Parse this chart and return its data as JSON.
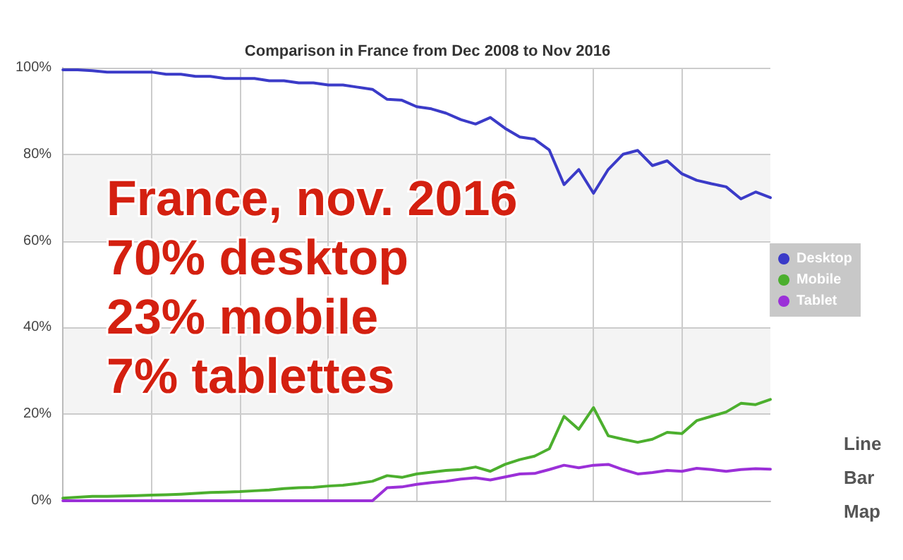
{
  "chart_data": {
    "type": "line",
    "title": "Comparison in France from Dec 2008 to Nov 2016",
    "categories": [
      null,
      null,
      null,
      null,
      null,
      null,
      null,
      null,
      null,
      null,
      null,
      null,
      null,
      null,
      null,
      null,
      null,
      null,
      null,
      null,
      null,
      null,
      null,
      null,
      null,
      null,
      null,
      null,
      null,
      null,
      null,
      null,
      null,
      null,
      null,
      null,
      null,
      null,
      null,
      null,
      null,
      null,
      null,
      null,
      null,
      null,
      null,
      null,
      null
    ],
    "series": [
      {
        "name": "Desktop",
        "color": "#3b3bc8",
        "values": [
          99.5,
          99.5,
          99.3,
          99,
          99,
          99,
          99,
          98.5,
          98.5,
          98,
          98,
          97.5,
          97.5,
          97.5,
          97,
          97,
          96.5,
          96.5,
          96,
          96,
          95.5,
          95,
          92.7,
          92.5,
          91,
          90.5,
          89.5,
          88,
          87,
          88.5,
          86,
          84,
          83.5,
          81,
          73,
          76.5,
          71,
          76.5,
          80,
          80.9,
          77.4,
          78.5,
          75.5,
          74,
          73.2,
          72.5,
          69.7,
          71.3,
          70
        ]
      },
      {
        "name": "Mobile",
        "color": "#4caf2e",
        "values": [
          0.6,
          0.8,
          1,
          1,
          1.1,
          1.2,
          1.3,
          1.4,
          1.5,
          1.7,
          1.9,
          2,
          2.1,
          2.3,
          2.5,
          2.8,
          3,
          3.1,
          3.4,
          3.6,
          4,
          4.5,
          5.8,
          5.4,
          6.2,
          6.6,
          7,
          7.2,
          7.8,
          6.8,
          8.4,
          9.5,
          10.3,
          12,
          19.5,
          16.5,
          21.5,
          15,
          14.2,
          13.5,
          14.2,
          15.8,
          15.5,
          18.5,
          19.5,
          20.5,
          22.5,
          22.2,
          23.4
        ]
      },
      {
        "name": "Tablet",
        "color": "#9b30d8",
        "values": [
          0,
          0,
          0,
          0,
          0,
          0,
          0,
          0,
          0,
          0,
          0,
          0,
          0,
          0,
          0,
          0,
          0,
          0,
          0,
          0,
          0,
          0,
          3,
          3.2,
          3.8,
          4.2,
          4.5,
          5,
          5.3,
          4.8,
          5.5,
          6.2,
          6.3,
          7.2,
          8.2,
          7.6,
          8.2,
          8.4,
          7.2,
          6.2,
          6.5,
          7,
          6.8,
          7.5,
          7.2,
          6.8,
          7.2,
          7.4,
          7.3
        ]
      }
    ],
    "ylim": [
      0,
      100
    ],
    "yticks": [
      {
        "value": 0,
        "label": "0%"
      },
      {
        "value": 20,
        "label": "20%"
      },
      {
        "value": 40,
        "label": "40%"
      },
      {
        "value": 60,
        "label": "60%"
      },
      {
        "value": 80,
        "label": "80%"
      },
      {
        "value": 100,
        "label": "100%"
      }
    ],
    "grid": true,
    "legend": "right",
    "tick_labels": "y",
    "marker": "none",
    "line_style": "solid",
    "annotations": [
      "France, nov. 2016\n70% desktop\n23% mobile\n7% tablettes",
      "Line",
      "Bar",
      "Map"
    ]
  }
}
